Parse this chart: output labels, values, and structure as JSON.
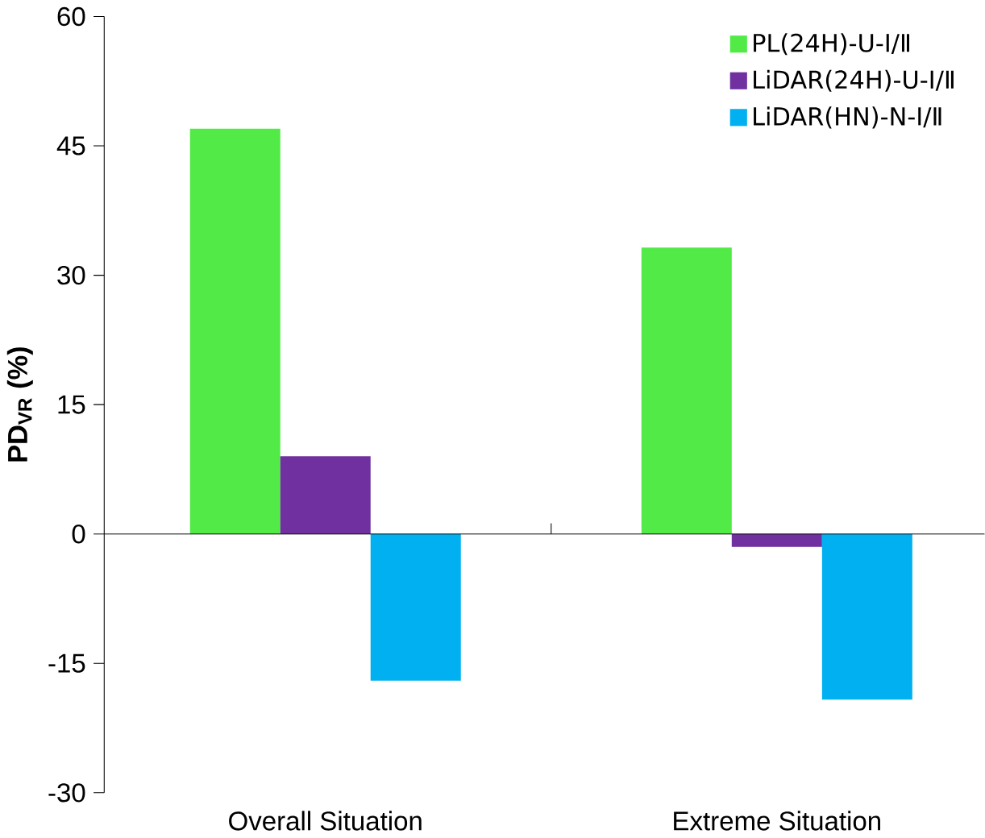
{
  "chart_data": {
    "type": "bar",
    "ylabel": "PD$_{VR}$ (%)",
    "categories": [
      "Overall Situation",
      "Extreme Situation"
    ],
    "series": [
      {
        "name": "PL(24H)-U-Ⅰ/Ⅱ",
        "color": "#52ea47",
        "values": [
          47.0,
          33.2
        ]
      },
      {
        "name": "LiDAR(24H)-U-Ⅰ/Ⅱ",
        "color": "#7030a0",
        "values": [
          9.0,
          -1.5
        ]
      },
      {
        "name": "LiDAR(HN)-N-Ⅰ/Ⅱ",
        "color": "#00b0f0",
        "values": [
          -17.0,
          -19.2
        ]
      }
    ],
    "ylim": [
      -30,
      60
    ],
    "yticks": [
      -30,
      -15,
      0,
      15,
      30,
      45,
      60
    ],
    "legend": "top right"
  }
}
